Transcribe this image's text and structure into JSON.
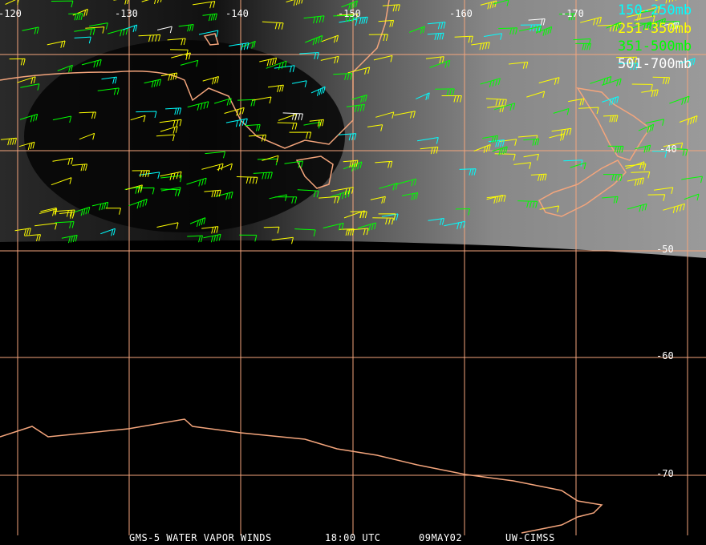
{
  "map": {
    "lon_labels": [
      "-120",
      "-130",
      "-140",
      "-150",
      "-160",
      "-170"
    ],
    "lat_labels": [
      "-40",
      "-50",
      "-60",
      "-70"
    ],
    "grid_color": "#f4a57c",
    "coast_color": "#f4a57c"
  },
  "legend": [
    {
      "label": "150-250mb",
      "color": "#00ffff"
    },
    {
      "label": "251-350mb",
      "color": "#ffff00"
    },
    {
      "label": "351-500mb",
      "color": "#00ff00"
    },
    {
      "label": "501-700mb",
      "color": "#ffffff"
    }
  ],
  "caption": {
    "product": "GMS-5 WATER VAPOR WINDS",
    "time": "18:00 UTC",
    "date": "09MAY02",
    "source": "UW-CIMSS"
  }
}
